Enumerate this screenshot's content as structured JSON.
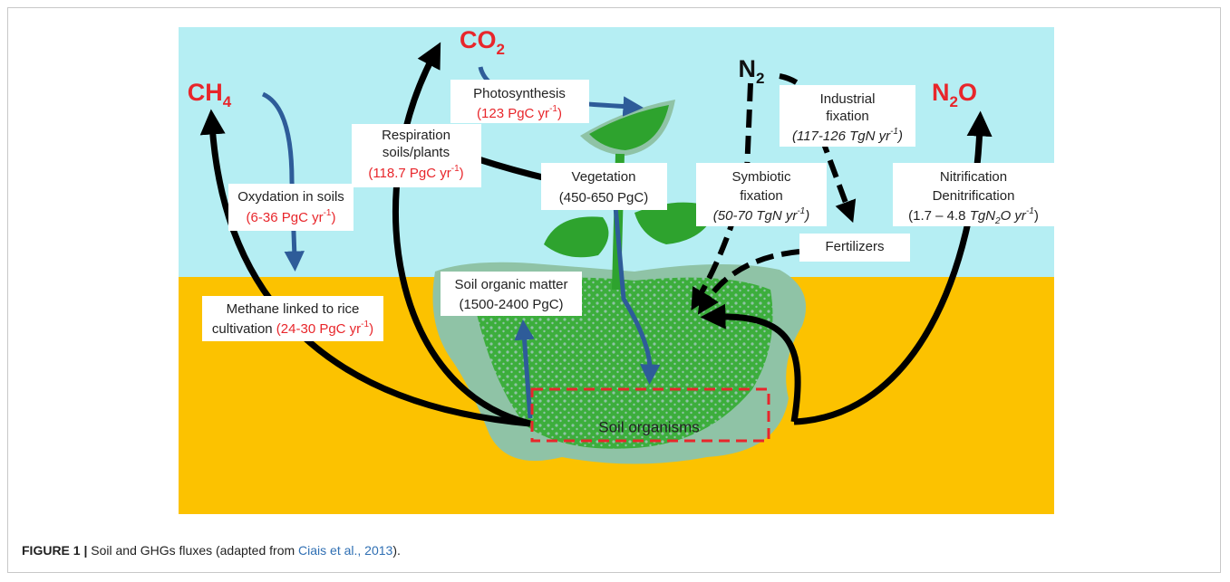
{
  "gases": {
    "co2": {
      "main": "CO",
      "sub": "2"
    },
    "ch4": {
      "main": "CH",
      "sub": "4"
    },
    "n2": {
      "main": "N",
      "sub": "2"
    },
    "n2o": {
      "main": "N",
      "sub": "2",
      "end": "O"
    }
  },
  "labels": {
    "photosynthesis": {
      "title": "Photosynthesis",
      "flux": "(123 PgC yr",
      "flux_sup": "-1",
      "flux_end": ")"
    },
    "respiration": {
      "title": "Respiration",
      "title2": "soils/plants",
      "flux": "(118.7 PgC yr",
      "flux_sup": "-1",
      "flux_end": ")"
    },
    "oxydation": {
      "title": "Oxydation in soils",
      "flux": "(6-36 PgC yr",
      "flux_sup": "-1",
      "flux_end": ")"
    },
    "methane": {
      "title": "Methane linked to rice",
      "title2": "cultivation ",
      "flux": "(24-30 PgC yr",
      "flux_sup": "-1",
      "flux_end": ")"
    },
    "vegetation": {
      "title": "Vegetation",
      "stock": "(450-650 PgC)"
    },
    "soil_organic_matter": {
      "title": "Soil organic matter",
      "stock": "(1500-2400 PgC)"
    },
    "industrial_fixation": {
      "title": "Industrial",
      "title2": "fixation",
      "flux": "(117-126 TgN yr",
      "flux_sup": "-1",
      "flux_end": ")"
    },
    "symbiotic_fixation": {
      "title": "Symbiotic",
      "title2": "fixation",
      "flux": "(50-70 TgN yr",
      "flux_sup": "-1",
      "flux_end": ")"
    },
    "fertilizers": {
      "title": "Fertilizers"
    },
    "nitrification": {
      "title": "Nitrification",
      "title2": "Denitrification",
      "flux": "(1.7 – 4.8 ",
      "unit": "TgN",
      "unit_sub": "2",
      "unit_end": "O yr",
      "flux_sup": "-1",
      "flux_end": ")"
    },
    "soil_organisms": {
      "title": "Soil organisms"
    }
  },
  "caption": {
    "label": "FIGURE 1 |",
    "text": " Soil and GHGs fluxes (adapted from ",
    "link": "Ciais et al., 2013",
    "end": ")."
  }
}
